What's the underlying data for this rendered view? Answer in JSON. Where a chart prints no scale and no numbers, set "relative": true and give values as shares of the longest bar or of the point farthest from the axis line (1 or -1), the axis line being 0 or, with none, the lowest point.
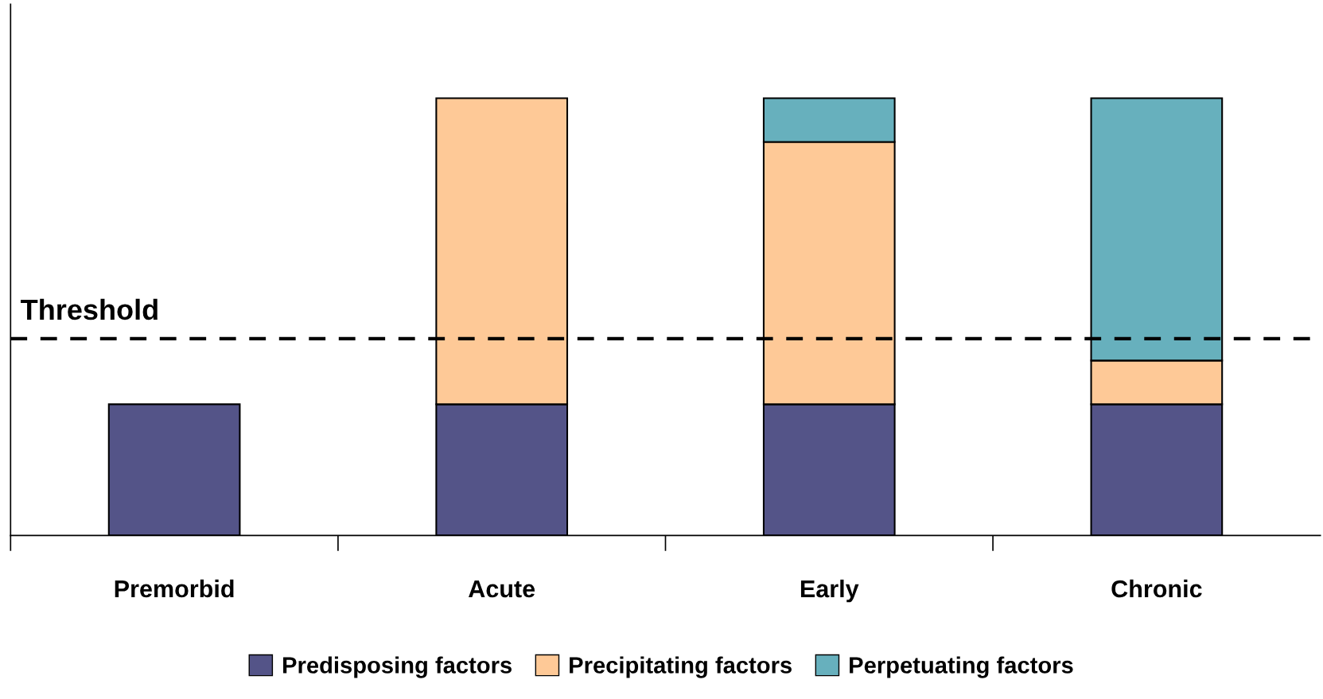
{
  "chart_data": {
    "type": "bar",
    "stacked": true,
    "relative": true,
    "categories": [
      "Premorbid",
      "Acute",
      "Early",
      "Chronic"
    ],
    "series": [
      {
        "name": "Predisposing factors",
        "color": "#545488",
        "values": [
          0.3,
          0.3,
          0.3,
          0.3
        ]
      },
      {
        "name": "Precipitating factors",
        "color": "#fec997",
        "values": [
          null,
          0.7,
          0.6,
          0.1
        ]
      },
      {
        "name": "Perpetuating factors",
        "color": "#67b0bd",
        "values": [
          null,
          null,
          0.1,
          0.6
        ]
      }
    ],
    "ref_lines": [
      {
        "axis": "y",
        "value": 0.45,
        "label": "Threshold",
        "color": "#000000",
        "line_style": "dashed"
      }
    ],
    "legend": "bottom",
    "grid": false
  }
}
